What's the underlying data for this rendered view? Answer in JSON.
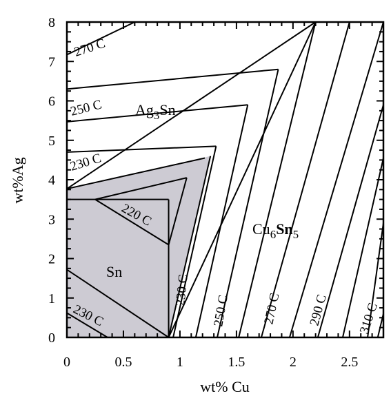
{
  "diagram": {
    "x_axis": {
      "title": "wt% Cu",
      "min": 0,
      "max": 2.8,
      "ticks": [
        {
          "value": 0,
          "label": "0"
        },
        {
          "value": 0.5,
          "label": "0.5"
        },
        {
          "value": 1,
          "label": "1"
        },
        {
          "value": 1.5,
          "label": "1.5"
        },
        {
          "value": 2,
          "label": "2"
        },
        {
          "value": 2.5,
          "label": "2.5"
        }
      ],
      "minor_step": 0.1
    },
    "y_axis": {
      "title": "wt%Ag",
      "min": 0,
      "max": 8,
      "ticks": [
        {
          "value": 0,
          "label": "0"
        },
        {
          "value": 1,
          "label": "1"
        },
        {
          "value": 2,
          "label": "2"
        },
        {
          "value": 3,
          "label": "3"
        },
        {
          "value": 4,
          "label": "4"
        },
        {
          "value": 5,
          "label": "5"
        },
        {
          "value": 6,
          "label": "6"
        },
        {
          "value": 7,
          "label": "7"
        },
        {
          "value": 8,
          "label": "8"
        }
      ],
      "minor_step": 0.25
    },
    "phases": {
      "ag3sn": {
        "main": "Ag",
        "sub": "3",
        "tail": "Sn"
      },
      "cu6sn5": {
        "main": "Cu",
        "sub": "6",
        "bold": "Sn",
        "sub2": "5"
      },
      "sn": {
        "label": "Sn"
      }
    },
    "isotherm_labels": {
      "l270_top": "270 C",
      "l250_left": "250 C",
      "l230_left": "230 C",
      "l220": "220 C",
      "l230_bottom": "230 C",
      "l230_vert": "230 C",
      "l250_vert": "250 C",
      "l270_vert": "270 C",
      "l290_vert": "290 C",
      "l310_vert": "310 C"
    },
    "colors": {
      "sn_region_fill": "#cdcbd3",
      "line": "#000000",
      "background": "#ffffff"
    }
  }
}
